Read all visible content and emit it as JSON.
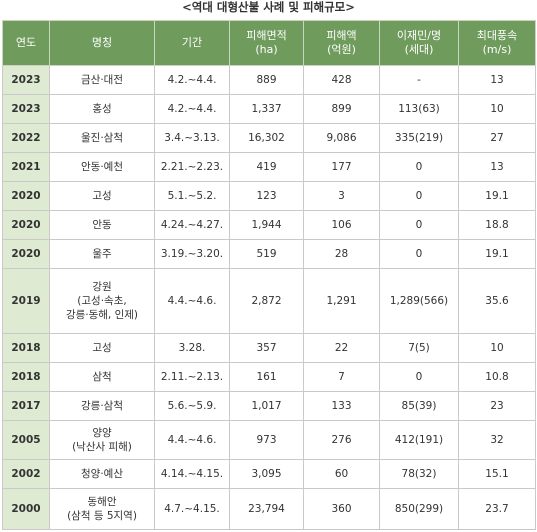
{
  "title": "<역대 대형산불 사례 및 피해규모>",
  "headers": [
    "연도",
    "명칭",
    "기간",
    "피해면적\n(ha)",
    "피해액\n(억원)",
    "이재민/명\n(세대)",
    "최대풍속\n(m/s)"
  ],
  "rows": [
    {
      "year": "2023",
      "name": "금산·대전",
      "period": "4.2.~4.4.",
      "area": "889",
      "damage": "428",
      "displaced": "-",
      "wind": "13"
    },
    {
      "year": "2023",
      "name": "홍성",
      "period": "4.2.~4.4.",
      "area": "1,337",
      "damage": "899",
      "displaced": "113(63)",
      "wind": "10"
    },
    {
      "year": "2022",
      "name": "울진·삼척",
      "period": "3.4.~3.13.",
      "area": "16,302",
      "damage": "9,086",
      "displaced": "335(219)",
      "wind": "27"
    },
    {
      "year": "2021",
      "name": "안동·예천",
      "period": "2.21.~2.23.",
      "area": "419",
      "damage": "177",
      "displaced": "0",
      "wind": "13"
    },
    {
      "year": "2020",
      "name": "고성",
      "period": "5.1.~5.2.",
      "area": "123",
      "damage": "3",
      "displaced": "0",
      "wind": "19.1"
    },
    {
      "year": "2020",
      "name": "안동",
      "period": "4.24.~4.27.",
      "area": "1,944",
      "damage": "106",
      "displaced": "0",
      "wind": "18.8"
    },
    {
      "year": "2020",
      "name": "울주",
      "period": "3.19.~3.20.",
      "area": "519",
      "damage": "28",
      "displaced": "0",
      "wind": "19.1"
    },
    {
      "year": "2019",
      "name": "강원\n(고성·속초,\n강릉·동해, 인제)",
      "period": "4.4.~4.6.",
      "area": "2,872",
      "damage": "1,291",
      "displaced": "1,289(566)",
      "wind": "35.6"
    },
    {
      "year": "2018",
      "name": "고성",
      "period": "3.28.",
      "area": "357",
      "damage": "22",
      "displaced": "7(5)",
      "wind": "10"
    },
    {
      "year": "2018",
      "name": "삼척",
      "period": "2.11.~2.13.",
      "area": "161",
      "damage": "7",
      "displaced": "0",
      "wind": "10.8"
    },
    {
      "year": "2017",
      "name": "강릉·삼척",
      "period": "5.6.~5.9.",
      "area": "1,017",
      "damage": "133",
      "displaced": "85(39)",
      "wind": "23"
    },
    {
      "year": "2005",
      "name": "양양\n(낙산사 피해)",
      "period": "4.4.~4.6.",
      "area": "973",
      "damage": "276",
      "displaced": "412(191)",
      "wind": "32"
    },
    {
      "year": "2002",
      "name": "청양·예산",
      "period": "4.14.~4.15.",
      "area": "3,095",
      "damage": "60",
      "displaced": "78(32)",
      "wind": "15.1"
    },
    {
      "year": "2000",
      "name": "동해안\n(삼척 등 5지역)",
      "period": "4.7.~4.15.",
      "area": "23,794",
      "damage": "360",
      "displaced": "850(299)",
      "wind": "23.7"
    }
  ]
}
